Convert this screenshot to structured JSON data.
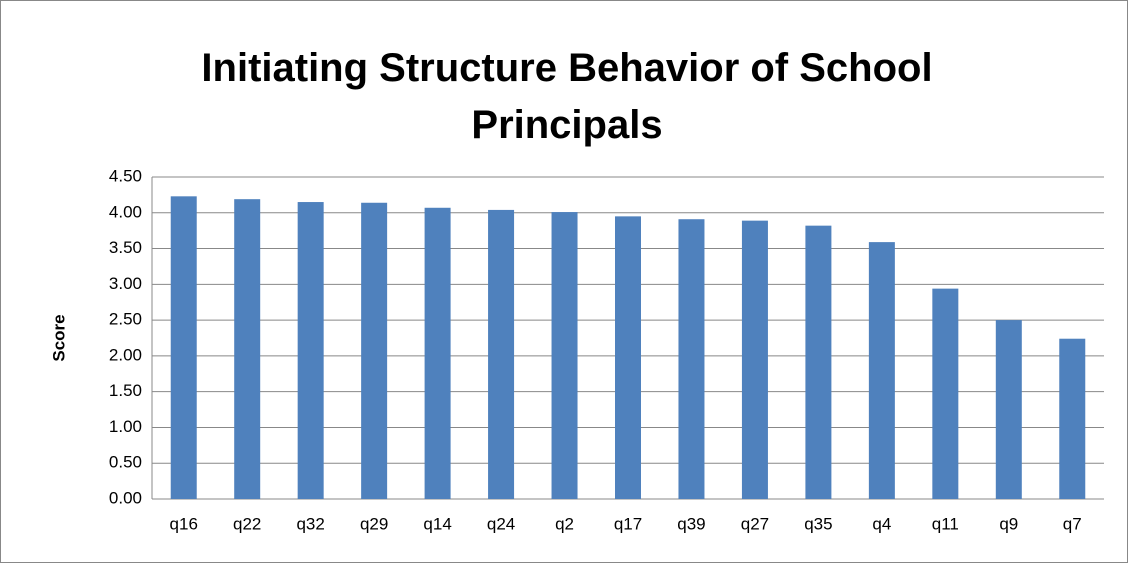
{
  "chart_data": {
    "type": "bar",
    "title": "Initiating Structure Behavior of School Principals",
    "y_label": "Score",
    "categories": [
      "q16",
      "q22",
      "q32",
      "q29",
      "q14",
      "q24",
      "q2",
      "q17",
      "q39",
      "q27",
      "q35",
      "q4",
      "q11",
      "q9",
      "q7"
    ],
    "values": [
      4.23,
      4.19,
      4.15,
      4.14,
      4.07,
      4.04,
      4.01,
      3.95,
      3.91,
      3.89,
      3.82,
      3.59,
      2.94,
      2.5,
      2.24
    ],
    "color": "#4f81bd",
    "ylim": [
      0,
      4.5
    ],
    "yticks": [
      {
        "value": 0,
        "label": "0.00"
      },
      {
        "value": 0.5,
        "label": "0.50"
      },
      {
        "value": 1,
        "label": "1.00"
      },
      {
        "value": 1.5,
        "label": "1.50"
      },
      {
        "value": 2,
        "label": "2.00"
      },
      {
        "value": 2.5,
        "label": "2.50"
      },
      {
        "value": 3,
        "label": "3.00"
      },
      {
        "value": 3.5,
        "label": "3.50"
      },
      {
        "value": 4,
        "label": "4.00"
      },
      {
        "value": 4.5,
        "label": "4.50"
      }
    ],
    "grid": true
  }
}
